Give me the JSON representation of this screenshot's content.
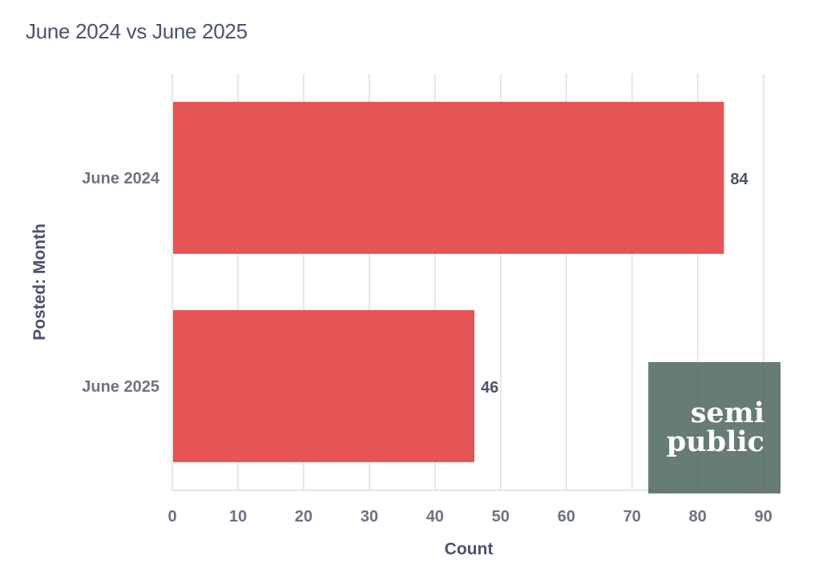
{
  "chart_data": {
    "type": "bar",
    "orientation": "horizontal",
    "title": "June 2024 vs June 2025",
    "xlabel": "Count",
    "ylabel": "Posted: Month",
    "categories": [
      "June 2024",
      "June 2025"
    ],
    "values": [
      84,
      46
    ],
    "data_labels": [
      "84",
      "46"
    ],
    "xlim": [
      0,
      92
    ],
    "xticks": [
      0,
      10,
      20,
      30,
      40,
      50,
      60,
      70,
      80,
      90
    ],
    "grid": true,
    "bar_color": "#e55555",
    "grid_color": "#e6e6e6",
    "text_color": "#4a5270",
    "tick_color": "#6e7381"
  },
  "watermark": {
    "line1": "semi",
    "line2": "public",
    "background": "#5d7368"
  }
}
